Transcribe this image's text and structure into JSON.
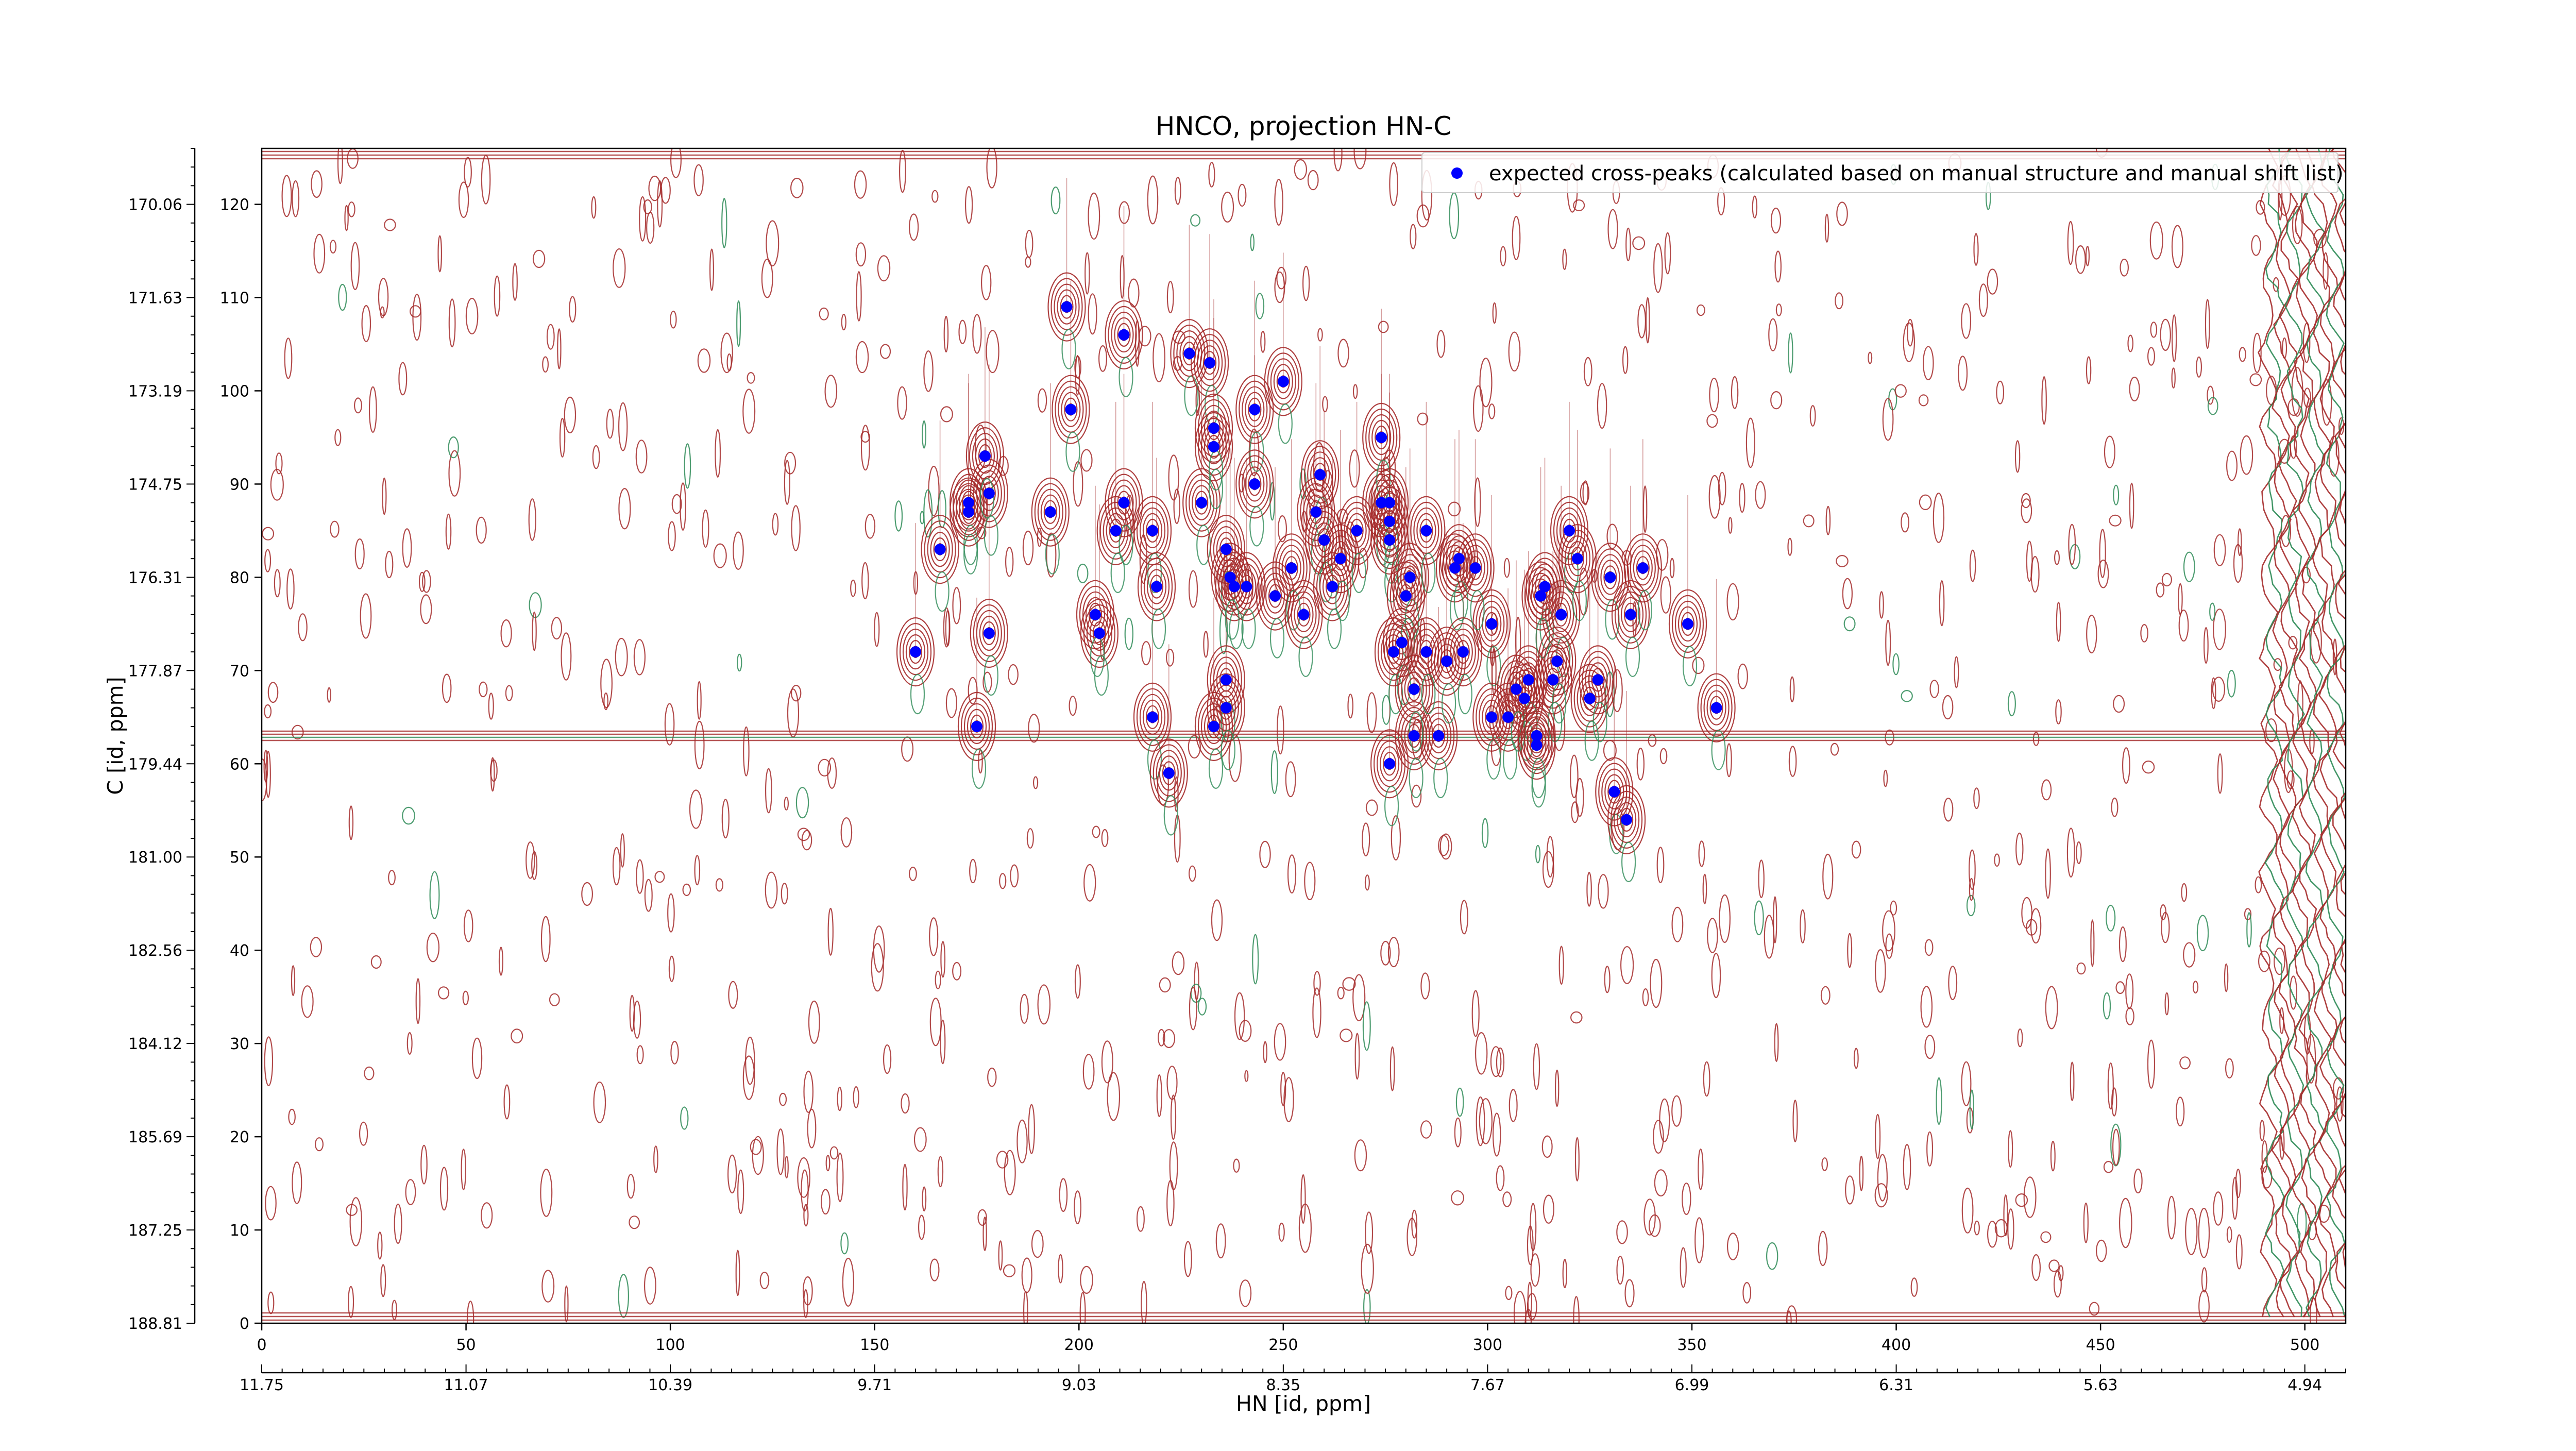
{
  "chart_data": {
    "type": "scatter",
    "title": "HNCO, projection HN-C",
    "xlabel": "HN [id, ppm]",
    "ylabel": "C [id, ppm]",
    "xlim": [
      0,
      510
    ],
    "ylim": [
      0,
      126
    ],
    "x_ticks": [
      0,
      50,
      100,
      150,
      200,
      250,
      300,
      350,
      400,
      450,
      500
    ],
    "y_ticks": [
      0,
      10,
      20,
      30,
      40,
      50,
      60,
      70,
      80,
      90,
      100,
      110,
      120
    ],
    "x_ppm_ticks": [
      {
        "at": 0,
        "label": "11.75"
      },
      {
        "at": 50,
        "label": "11.07"
      },
      {
        "at": 100,
        "label": "10.39"
      },
      {
        "at": 150,
        "label": "9.71"
      },
      {
        "at": 200,
        "label": "9.03"
      },
      {
        "at": 250,
        "label": "8.35"
      },
      {
        "at": 300,
        "label": "7.67"
      },
      {
        "at": 350,
        "label": "6.99"
      },
      {
        "at": 400,
        "label": "6.31"
      },
      {
        "at": 450,
        "label": "5.63"
      },
      {
        "at": 500,
        "label": "4.94"
      }
    ],
    "y_ppm_ticks": [
      {
        "at": 0,
        "label": "188.81"
      },
      {
        "at": 10,
        "label": "187.25"
      },
      {
        "at": 20,
        "label": "185.69"
      },
      {
        "at": 30,
        "label": "184.12"
      },
      {
        "at": 40,
        "label": "182.56"
      },
      {
        "at": 50,
        "label": "181.00"
      },
      {
        "at": 60,
        "label": "179.44"
      },
      {
        "at": 70,
        "label": "177.87"
      },
      {
        "at": 80,
        "label": "176.31"
      },
      {
        "at": 90,
        "label": "174.75"
      },
      {
        "at": 100,
        "label": "173.19"
      },
      {
        "at": 110,
        "label": "171.63"
      },
      {
        "at": 120,
        "label": "170.06"
      }
    ],
    "legend": {
      "placement": "top-right",
      "label": "expected cross-peaks (calculated based on manual structure and manual shift list)",
      "color": "#0000ff"
    },
    "contour_colors": {
      "positive": "#a52a2a",
      "negative": "#2e8b57"
    },
    "series": [
      {
        "name": "expected cross-peaks (calculated based on manual structure and manual shift list)",
        "x": [
          197,
          211,
          227,
          232,
          243,
          250,
          198,
          173,
          173,
          178,
          177,
          193,
          209,
          211,
          166,
          160,
          218,
          230,
          233,
          233,
          236,
          238,
          218,
          205,
          204,
          178,
          175,
          219,
          222,
          233,
          236,
          236,
          241,
          237,
          243,
          248,
          252,
          255,
          259,
          258,
          260,
          262,
          264,
          268,
          274,
          274,
          276,
          276,
          276,
          279,
          281,
          280,
          276,
          277,
          285,
          288,
          292,
          293,
          301,
          309,
          310,
          312,
          314,
          318,
          320,
          322,
          316,
          325,
          331,
          334,
          349,
          282,
          290,
          282,
          285,
          294,
          297,
          301,
          305,
          307,
          312,
          313,
          317,
          327,
          330,
          335,
          338,
          356
        ],
        "y": [
          109,
          106,
          104,
          103,
          98,
          101,
          98,
          88,
          87,
          89,
          93,
          87,
          85,
          88,
          83,
          72,
          85,
          88,
          94,
          96,
          83,
          79,
          65,
          74,
          76,
          74,
          64,
          79,
          59,
          64,
          69,
          66,
          79,
          80,
          90,
          78,
          81,
          76,
          91,
          87,
          84,
          79,
          82,
          85,
          88,
          95,
          88,
          84,
          86,
          73,
          80,
          78,
          60,
          72,
          85,
          63,
          81,
          82,
          75,
          67,
          69,
          62,
          79,
          76,
          85,
          82,
          69,
          67,
          57,
          54,
          75,
          63,
          71,
          68,
          72,
          72,
          81,
          65,
          65,
          68,
          63,
          78,
          71,
          69,
          80,
          76,
          81,
          66
        ]
      }
    ]
  }
}
